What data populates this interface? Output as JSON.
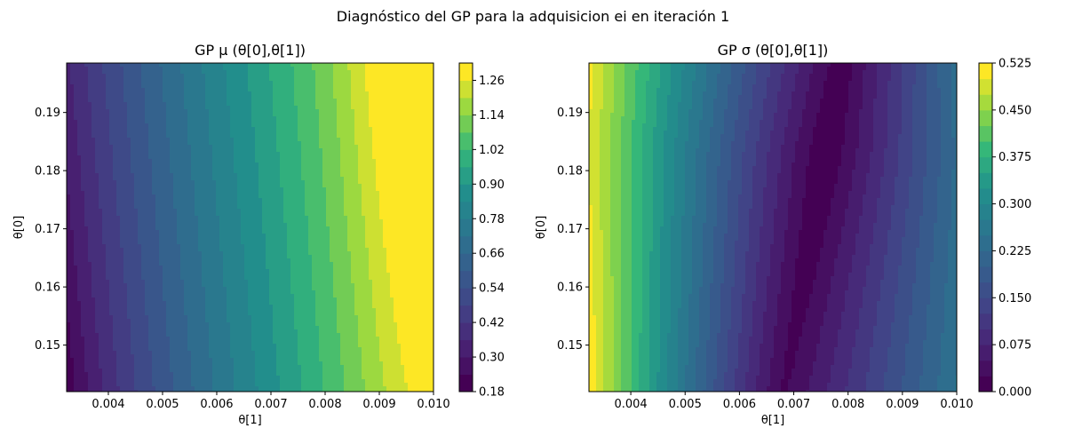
{
  "figure": {
    "suptitle": "Diagnóstico del GP para la adquisicion ei en iteración 1"
  },
  "chart_data": [
    {
      "type": "heatmap",
      "subtype": "filled-contour",
      "title": "GP μ (θ[0],θ[1])",
      "xlabel": "θ[1]",
      "ylabel": "θ[0]",
      "xlim": [
        0.00323,
        0.01
      ],
      "ylim": [
        0.142,
        0.1985
      ],
      "xticks": [
        "0.004",
        "0.005",
        "0.006",
        "0.007",
        "0.008",
        "0.009",
        "0.010"
      ],
      "yticks": [
        "0.15",
        "0.16",
        "0.17",
        "0.18",
        "0.19"
      ],
      "colorbar": {
        "min": 0.18,
        "max": 1.32,
        "step": 0.06,
        "ticks": [
          "0.18",
          "0.30",
          "0.42",
          "0.54",
          "0.66",
          "0.78",
          "0.90",
          "1.02",
          "1.14",
          "1.26"
        ]
      },
      "colormap": "viridis",
      "description_values": {
        "min_region": "left edge, θ[1]≈0.0033, ≈0.18-0.24",
        "max_region": "upper right, θ[1]≈0.009-0.010, ≈1.26-1.32"
      }
    },
    {
      "type": "heatmap",
      "subtype": "filled-contour",
      "title": "GP σ (θ[0],θ[1])",
      "xlabel": "θ[1]",
      "ylabel": "θ[0]",
      "xlim": [
        0.00323,
        0.01
      ],
      "ylim": [
        0.142,
        0.1985
      ],
      "xticks": [
        "0.004",
        "0.005",
        "0.006",
        "0.007",
        "0.008",
        "0.009",
        "0.010"
      ],
      "yticks": [
        "0.15",
        "0.16",
        "0.17",
        "0.18",
        "0.19"
      ],
      "colorbar": {
        "min": 0.0,
        "max": 0.525,
        "step": 0.025,
        "ticks": [
          "0.000",
          "0.075",
          "0.150",
          "0.225",
          "0.300",
          "0.375",
          "0.450",
          "0.525"
        ]
      },
      "colormap": "viridis",
      "description_values": {
        "min_region": "elongated valley around θ[1]≈0.0068-0.0080, θ[0]≈0.155-0.198, ≈0.0-0.025",
        "max_region": "left edge, θ[1]≈0.0033, ≈0.50"
      }
    }
  ]
}
